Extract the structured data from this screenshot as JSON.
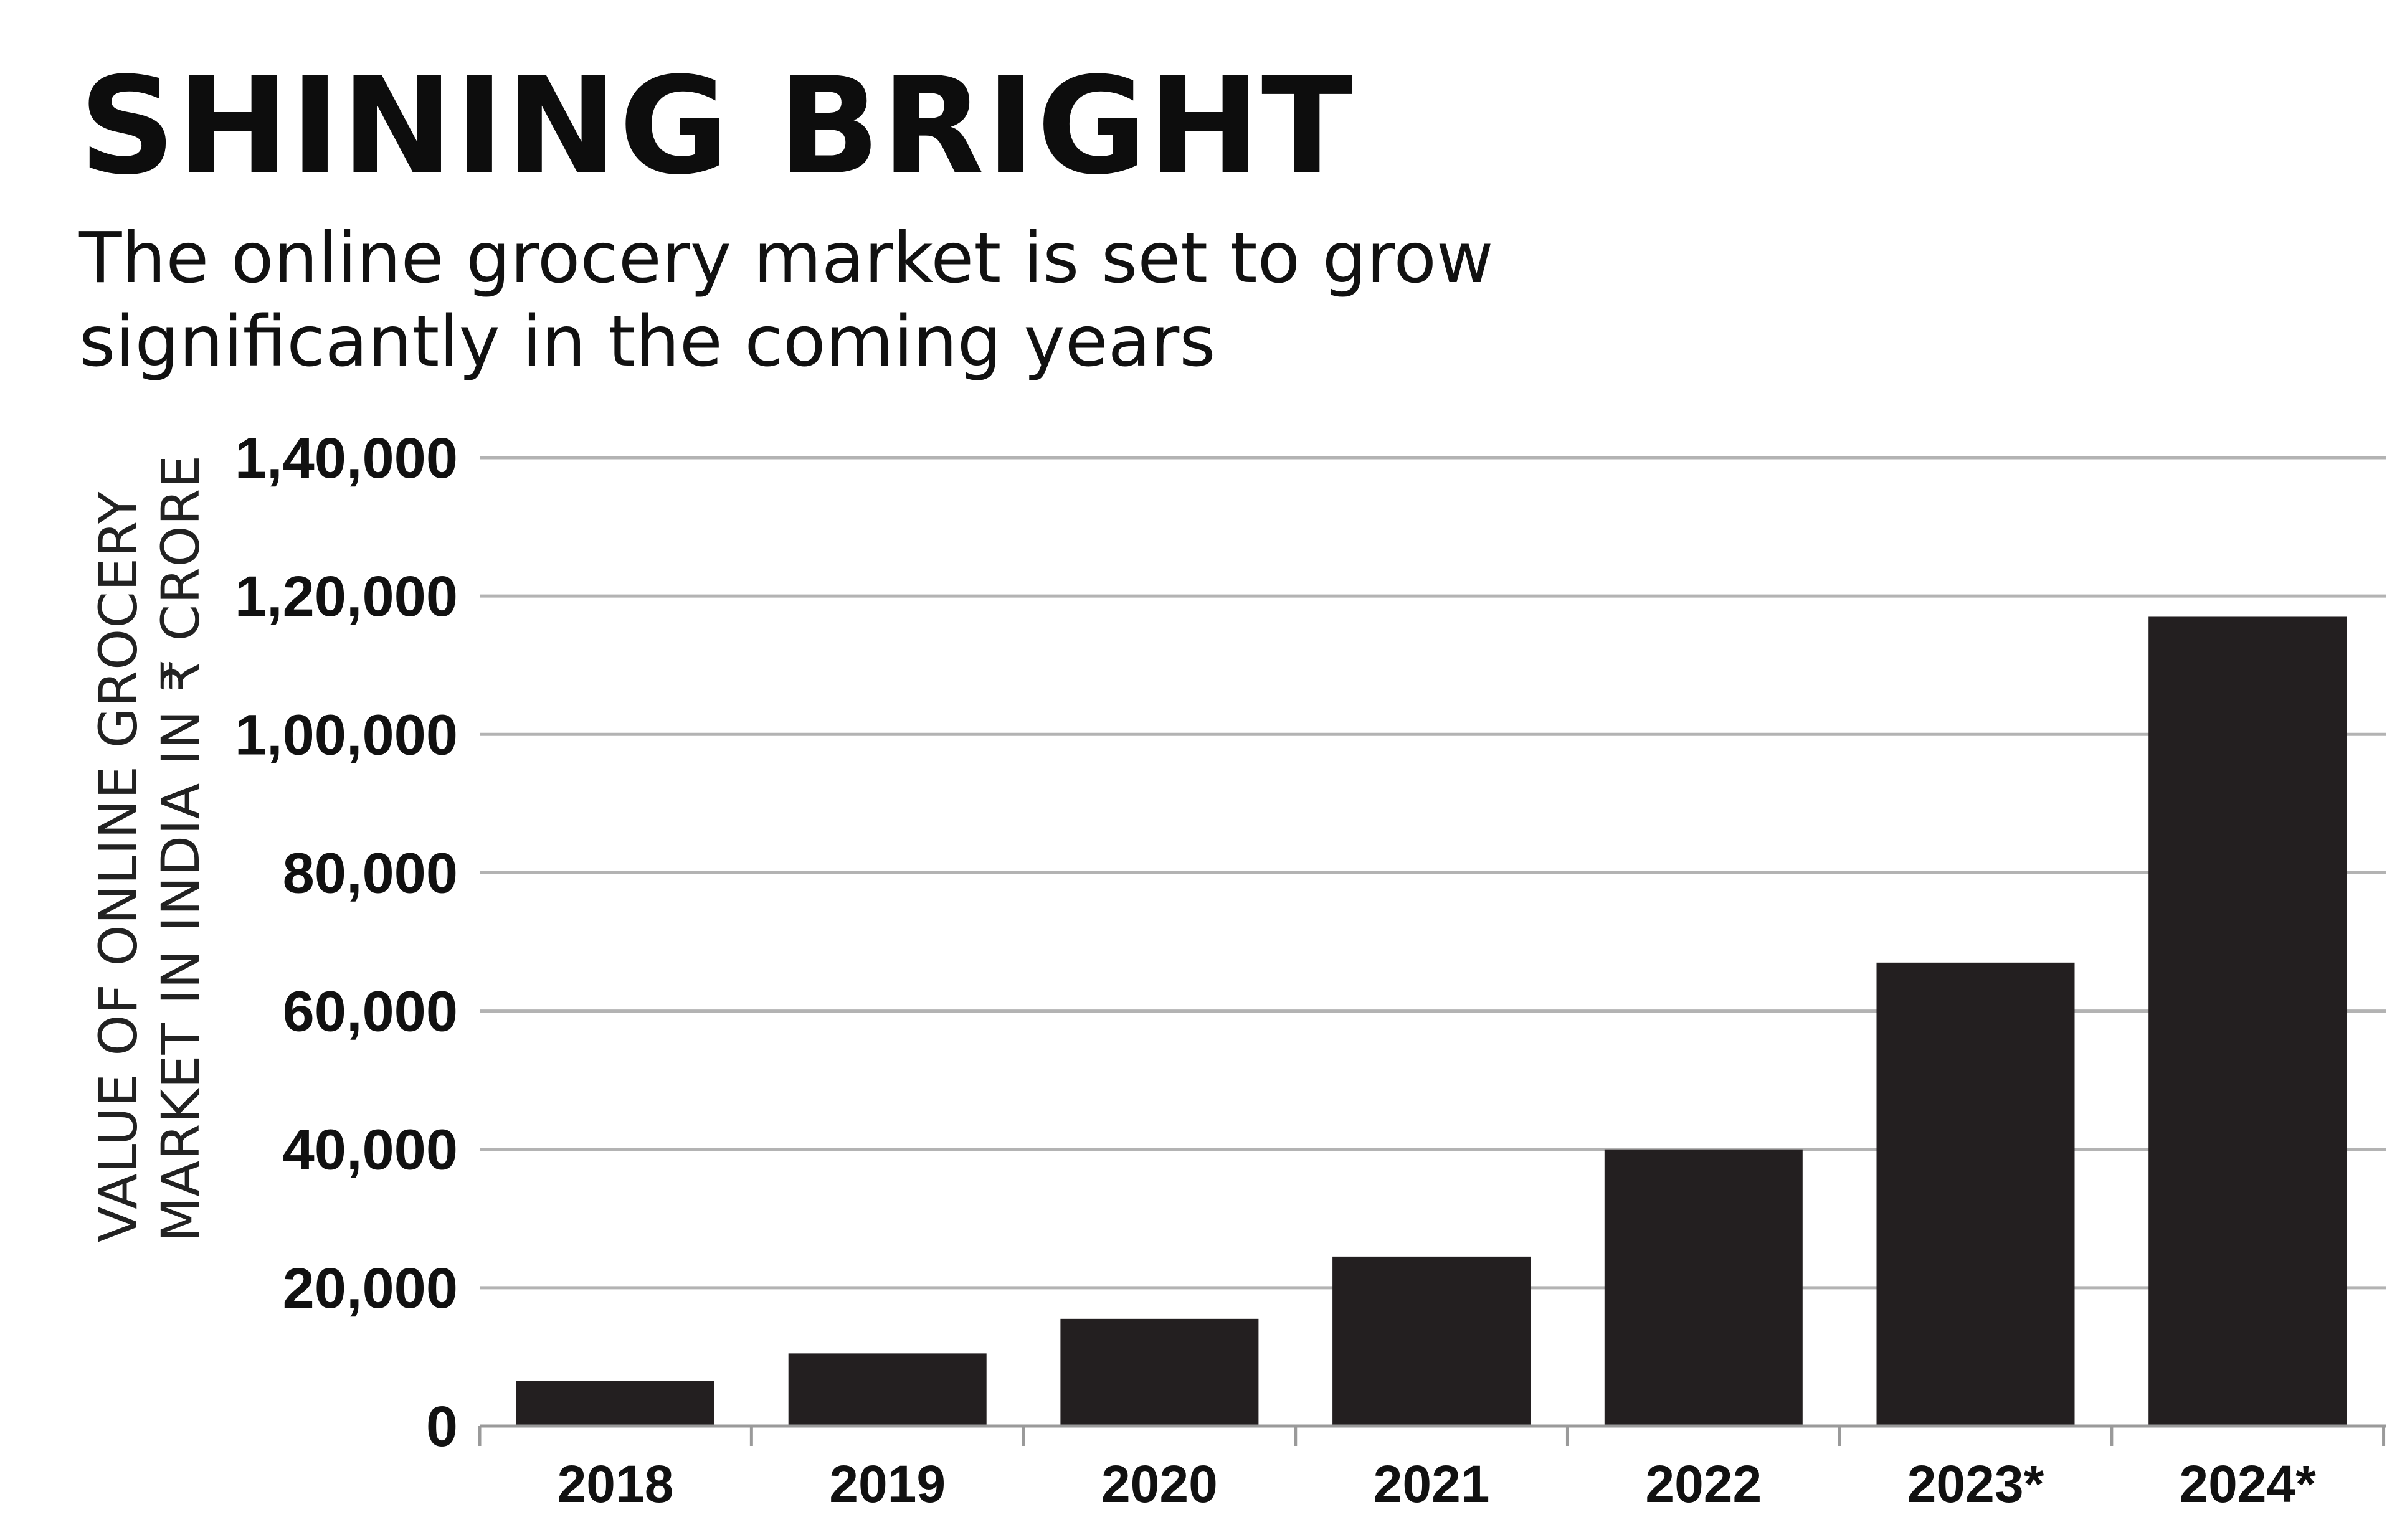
{
  "header": {
    "title": "SHINING BRIGHT",
    "subtitle": "The online grocery market is set to grow significantly in the coming years"
  },
  "chart_data": {
    "type": "bar",
    "title": "SHINING BRIGHT",
    "subtitle": "The online grocery market is set to grow significantly in the coming years",
    "ylabel_lines": [
      "VALUE OF ONLINE GROCERY",
      "MARKET IN INDIA IN ₹ CRORE"
    ],
    "xlabel": "",
    "categories": [
      "2018",
      "2019",
      "2020",
      "2021",
      "2022",
      "2023*",
      "2024*"
    ],
    "values": [
      6500,
      10500,
      15500,
      24500,
      40000,
      67000,
      117000
    ],
    "ylim": [
      0,
      140000
    ],
    "yticks": [
      0,
      20000,
      40000,
      60000,
      80000,
      100000,
      120000,
      140000
    ],
    "ytick_labels": [
      "0",
      "20,000",
      "40,000",
      "60,000",
      "80,000",
      "1,00,000",
      "1,20,000",
      "1,40,000"
    ],
    "grid": true,
    "legend": "none",
    "colors": {
      "bar": "#231f20",
      "grid": "#b3b3b3",
      "axis": "#9a9a9a",
      "text": "#111111"
    }
  }
}
